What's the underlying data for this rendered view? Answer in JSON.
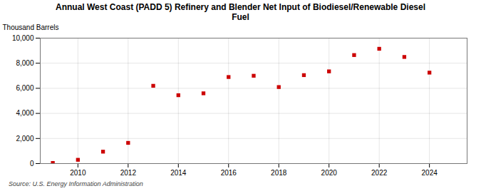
{
  "chart_data": {
    "type": "scatter",
    "title": "Annual West Coast (PADD 5) Refinery and Blender Net Input of Biodiesel/Renewable Diesel\nFuel",
    "ylabel": "Thousand Barrels",
    "source": "Source: U.S. Energy Information Administration",
    "x": [
      2009,
      2010,
      2011,
      2012,
      2013,
      2014,
      2015,
      2016,
      2017,
      2018,
      2019,
      2020,
      2021,
      2022,
      2023,
      2024
    ],
    "values": [
      50,
      300,
      950,
      1650,
      6200,
      5450,
      5600,
      6900,
      7000,
      6100,
      7050,
      7350,
      8650,
      9150,
      8500,
      7250
    ],
    "color": "#cc0000",
    "marker": "square",
    "xlim": [
      2008.5,
      2025.5
    ],
    "xticks": [
      2010,
      2012,
      2014,
      2016,
      2018,
      2020,
      2022,
      2024
    ],
    "ylim": [
      0,
      10000
    ],
    "yticks": [
      0,
      {
        "value": 2000,
        "label": "2,000"
      },
      {
        "value": 4000,
        "label": "4,000"
      },
      {
        "value": 6000,
        "label": "6,000"
      },
      {
        "value": 8000,
        "label": "8,000"
      },
      {
        "value": 10000,
        "label": "10,000"
      }
    ],
    "grid": true
  }
}
